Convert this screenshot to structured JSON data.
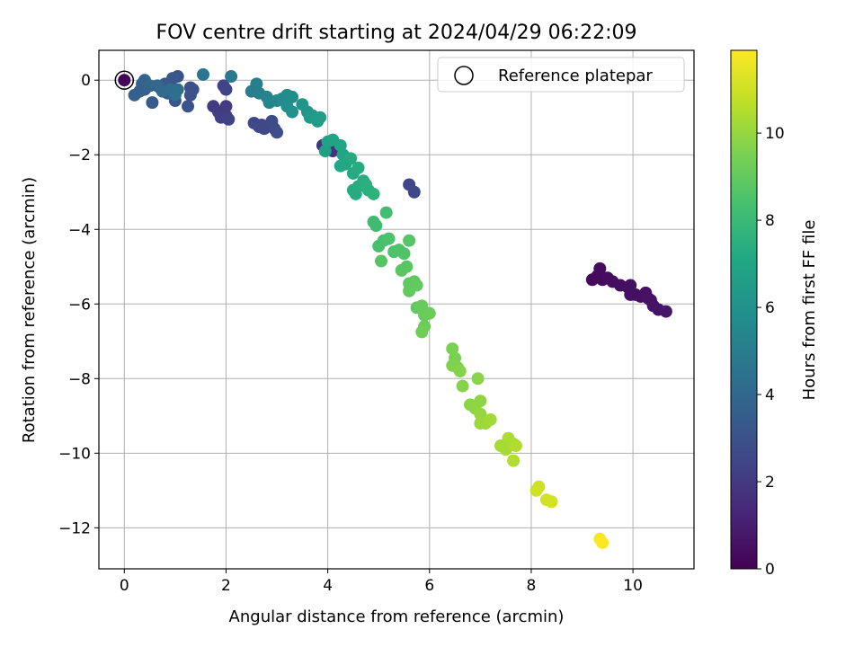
{
  "chart_data": {
    "type": "scatter",
    "title": "FOV centre drift starting at 2024/04/29 06:22:09",
    "xlabel": "Angular distance from reference (arcmin)",
    "ylabel": "Rotation from reference (arcmin)",
    "colorbar_label": "Hours from first FF file",
    "colormap": "viridis",
    "xlim": [
      -0.5,
      11.2
    ],
    "ylim": [
      -13.1,
      0.8
    ],
    "clim": [
      0,
      11.9
    ],
    "x_ticks": [
      0,
      2,
      4,
      6,
      8,
      10
    ],
    "y_ticks": [
      0,
      -2,
      -4,
      -6,
      -8,
      -10,
      -12
    ],
    "colorbar_ticks": [
      0,
      2,
      4,
      6,
      8,
      10
    ],
    "grid": true,
    "legend": {
      "placement": "top-right",
      "entries": [
        "Reference platepar"
      ]
    },
    "reference_point": {
      "x": 0,
      "y": 0
    },
    "series": [
      {
        "name": "Reference platepar",
        "points": [
          [
            0,
            0,
            0
          ]
        ]
      },
      {
        "points": [
          [
            9.2,
            -5.35,
            0.3
          ],
          [
            9.3,
            -5.25,
            0.3
          ],
          [
            9.35,
            -5.05,
            0.35
          ],
          [
            9.4,
            -5.35,
            0.35
          ],
          [
            9.5,
            -5.3,
            0.4
          ],
          [
            9.6,
            -5.4,
            0.4
          ],
          [
            9.75,
            -5.5,
            0.45
          ],
          [
            9.9,
            -5.55,
            0.45
          ],
          [
            9.95,
            -5.5,
            0.5
          ],
          [
            9.95,
            -5.75,
            0.5
          ],
          [
            10.15,
            -5.8,
            0.55
          ],
          [
            10.25,
            -5.7,
            0.55
          ],
          [
            10.3,
            -5.85,
            0.6
          ],
          [
            10.4,
            -6.05,
            0.6
          ],
          [
            10.5,
            -6.15,
            0.65
          ],
          [
            10.65,
            -6.2,
            0.7
          ],
          [
            10.35,
            -5.9,
            0.6
          ],
          [
            10.05,
            -5.75,
            0.5
          ],
          [
            0.0,
            0.0,
            0.1
          ],
          [
            1.75,
            -0.7,
            2.0
          ],
          [
            1.85,
            -0.85,
            2.1
          ],
          [
            1.9,
            -1.0,
            2.2
          ],
          [
            2.0,
            -0.95,
            2.2
          ],
          [
            2.0,
            -0.7,
            2.1
          ],
          [
            2.05,
            -1.05,
            2.3
          ],
          [
            1.95,
            -0.15,
            2.4
          ],
          [
            2.0,
            -0.25,
            2.4
          ],
          [
            2.55,
            -1.15,
            2.5
          ],
          [
            2.7,
            -1.2,
            2.5
          ],
          [
            2.65,
            -1.25,
            2.6
          ],
          [
            2.75,
            -1.3,
            2.6
          ],
          [
            2.9,
            -1.1,
            2.7
          ],
          [
            2.95,
            -1.3,
            2.7
          ],
          [
            3.0,
            -1.4,
            2.8
          ],
          [
            1.3,
            -0.2,
            2.9
          ],
          [
            1.35,
            -0.25,
            2.9
          ],
          [
            1.3,
            -0.4,
            3.0
          ],
          [
            1.25,
            -0.7,
            3.0
          ],
          [
            1.0,
            -0.55,
            3.1
          ],
          [
            1.05,
            0.1,
            3.1
          ],
          [
            0.85,
            -0.35,
            3.2
          ],
          [
            0.95,
            0.05,
            3.2
          ],
          [
            0.8,
            -0.1,
            3.3
          ],
          [
            0.7,
            -0.2,
            3.3
          ],
          [
            0.55,
            -0.6,
            3.4
          ],
          [
            0.4,
            -0.25,
            3.5
          ],
          [
            0.35,
            -0.1,
            3.5
          ],
          [
            0.2,
            -0.4,
            3.6
          ],
          [
            0.3,
            -0.3,
            3.6
          ],
          [
            0.4,
            0.0,
            3.8
          ],
          [
            0.5,
            -0.15,
            3.9
          ],
          [
            0.65,
            -0.15,
            4.0
          ],
          [
            0.75,
            -0.3,
            4.1
          ],
          [
            0.9,
            -0.25,
            4.2
          ],
          [
            1.0,
            -0.4,
            4.3
          ],
          [
            1.05,
            -0.25,
            4.4
          ],
          [
            1.55,
            0.15,
            4.6
          ],
          [
            2.1,
            0.1,
            4.8
          ],
          [
            2.5,
            -0.3,
            5.0
          ],
          [
            2.6,
            -0.1,
            5.1
          ],
          [
            2.65,
            -0.35,
            5.2
          ],
          [
            2.8,
            -0.45,
            5.3
          ],
          [
            2.85,
            -0.6,
            5.4
          ],
          [
            3.0,
            -0.55,
            5.5
          ],
          [
            3.1,
            -0.5,
            5.6
          ],
          [
            3.2,
            -0.4,
            5.7
          ],
          [
            3.3,
            -0.45,
            5.8
          ],
          [
            3.2,
            -0.7,
            5.9
          ],
          [
            3.3,
            -0.85,
            6.0
          ],
          [
            3.5,
            -0.65,
            6.1
          ],
          [
            3.6,
            -0.85,
            6.2
          ],
          [
            3.65,
            -1.0,
            6.3
          ],
          [
            3.7,
            -0.95,
            6.4
          ],
          [
            3.8,
            -1.1,
            6.5
          ],
          [
            3.85,
            -1.0,
            6.6
          ],
          [
            3.9,
            -1.75,
            1.8
          ],
          [
            4.1,
            -1.9,
            1.7
          ],
          [
            3.95,
            -1.9,
            6.7
          ],
          [
            4.0,
            -1.65,
            6.8
          ],
          [
            4.1,
            -1.6,
            6.9
          ],
          [
            4.25,
            -1.75,
            7.0
          ],
          [
            4.3,
            -2.0,
            7.0
          ],
          [
            4.25,
            -2.3,
            7.1
          ],
          [
            4.35,
            -2.25,
            7.1
          ],
          [
            4.45,
            -2.1,
            7.2
          ],
          [
            4.5,
            -2.5,
            7.2
          ],
          [
            4.5,
            -2.95,
            7.3
          ],
          [
            4.55,
            -3.05,
            7.3
          ],
          [
            4.6,
            -2.85,
            7.4
          ],
          [
            4.7,
            -2.7,
            7.4
          ],
          [
            4.75,
            -2.8,
            7.5
          ],
          [
            4.8,
            -2.95,
            7.5
          ],
          [
            4.9,
            -3.05,
            7.6
          ],
          [
            4.6,
            -2.35,
            7.3
          ],
          [
            5.6,
            -2.8,
            2.5
          ],
          [
            5.7,
            -3.0,
            2.6
          ],
          [
            4.9,
            -3.8,
            8.2
          ],
          [
            4.95,
            -3.9,
            8.2
          ],
          [
            5.15,
            -3.55,
            8.3
          ],
          [
            5.0,
            -4.45,
            8.4
          ],
          [
            5.1,
            -4.3,
            8.4
          ],
          [
            5.2,
            -4.25,
            8.5
          ],
          [
            5.3,
            -4.6,
            8.5
          ],
          [
            5.4,
            -4.55,
            8.6
          ],
          [
            5.5,
            -4.65,
            8.6
          ],
          [
            5.6,
            -4.3,
            8.7
          ],
          [
            5.05,
            -4.85,
            8.7
          ],
          [
            5.45,
            -5.1,
            8.8
          ],
          [
            5.55,
            -5.0,
            8.8
          ],
          [
            5.6,
            -5.45,
            8.9
          ],
          [
            5.7,
            -5.4,
            8.9
          ],
          [
            5.6,
            -5.65,
            9.0
          ],
          [
            5.75,
            -5.5,
            9.0
          ],
          [
            5.75,
            -6.1,
            9.0
          ],
          [
            5.85,
            -6.05,
            9.1
          ],
          [
            5.9,
            -6.3,
            9.1
          ],
          [
            6.0,
            -6.25,
            9.2
          ],
          [
            5.9,
            -6.6,
            9.2
          ],
          [
            5.85,
            -6.75,
            9.3
          ],
          [
            6.45,
            -7.2,
            9.5
          ],
          [
            6.5,
            -7.45,
            9.5
          ],
          [
            6.45,
            -7.65,
            9.6
          ],
          [
            6.55,
            -7.7,
            9.6
          ],
          [
            6.6,
            -7.8,
            9.7
          ],
          [
            6.65,
            -8.2,
            9.7
          ],
          [
            6.95,
            -8.0,
            9.8
          ],
          [
            6.8,
            -8.7,
            9.8
          ],
          [
            6.9,
            -8.8,
            9.9
          ],
          [
            7.0,
            -8.6,
            9.9
          ],
          [
            7.0,
            -8.95,
            10.0
          ],
          [
            7.05,
            -9.1,
            10.0
          ],
          [
            7.1,
            -9.2,
            10.1
          ],
          [
            7.0,
            -9.2,
            10.1
          ],
          [
            7.2,
            -9.1,
            10.2
          ],
          [
            7.4,
            -9.8,
            10.3
          ],
          [
            7.5,
            -9.9,
            10.3
          ],
          [
            7.55,
            -9.6,
            10.4
          ],
          [
            7.65,
            -9.75,
            10.4
          ],
          [
            7.7,
            -9.8,
            10.5
          ],
          [
            7.65,
            -10.2,
            10.5
          ],
          [
            8.1,
            -11.0,
            11.0
          ],
          [
            8.15,
            -10.9,
            11.0
          ],
          [
            8.3,
            -11.25,
            11.1
          ],
          [
            8.4,
            -11.3,
            11.1
          ],
          [
            9.35,
            -12.3,
            11.8
          ],
          [
            9.4,
            -12.4,
            11.9
          ]
        ]
      }
    ]
  }
}
